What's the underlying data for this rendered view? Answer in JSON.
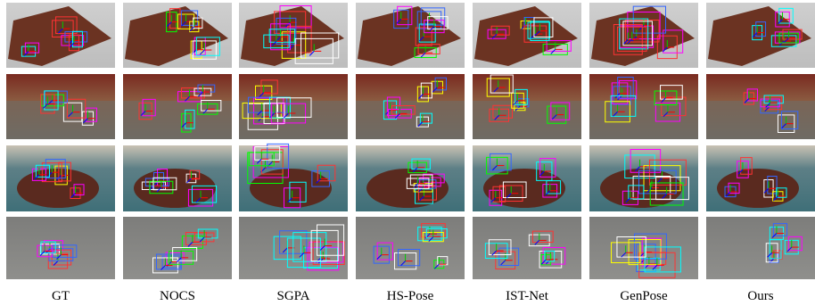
{
  "figure": {
    "columns": [
      "GT",
      "NOCS",
      "SGPA",
      "HS-Pose",
      "IST-Net",
      "GenPose",
      "Ours"
    ]
  }
}
